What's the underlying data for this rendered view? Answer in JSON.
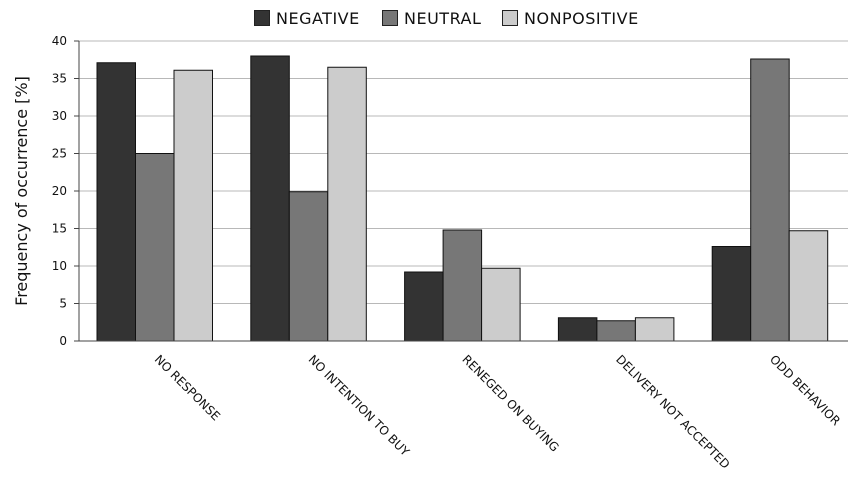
{
  "chart_data": {
    "type": "bar",
    "categories": [
      "NO RESPONSE",
      "NO INTENTION TO BUY",
      "RENEGED ON BUYING",
      "DELIVERY NOT ACCEPTED",
      "ODD BEHAVIOR"
    ],
    "series": [
      {
        "name": "NEGATIVE",
        "color": "#333333",
        "values": [
          37.1,
          38.0,
          9.2,
          3.1,
          12.6
        ]
      },
      {
        "name": "NEUTRAL",
        "color": "#777777",
        "values": [
          25.0,
          19.9,
          14.8,
          2.7,
          37.6
        ]
      },
      {
        "name": "NONPOSITIVE",
        "color": "#cccccc",
        "values": [
          36.1,
          36.5,
          9.7,
          3.1,
          14.7
        ]
      }
    ],
    "ylabel": "Frequency of occurrence [%]",
    "xlabel": "",
    "ylim": [
      0,
      40
    ],
    "yticks": [
      0,
      5,
      10,
      15,
      20,
      25,
      30,
      35,
      40
    ],
    "grid": "horizontal",
    "legend_position": "top-center"
  }
}
